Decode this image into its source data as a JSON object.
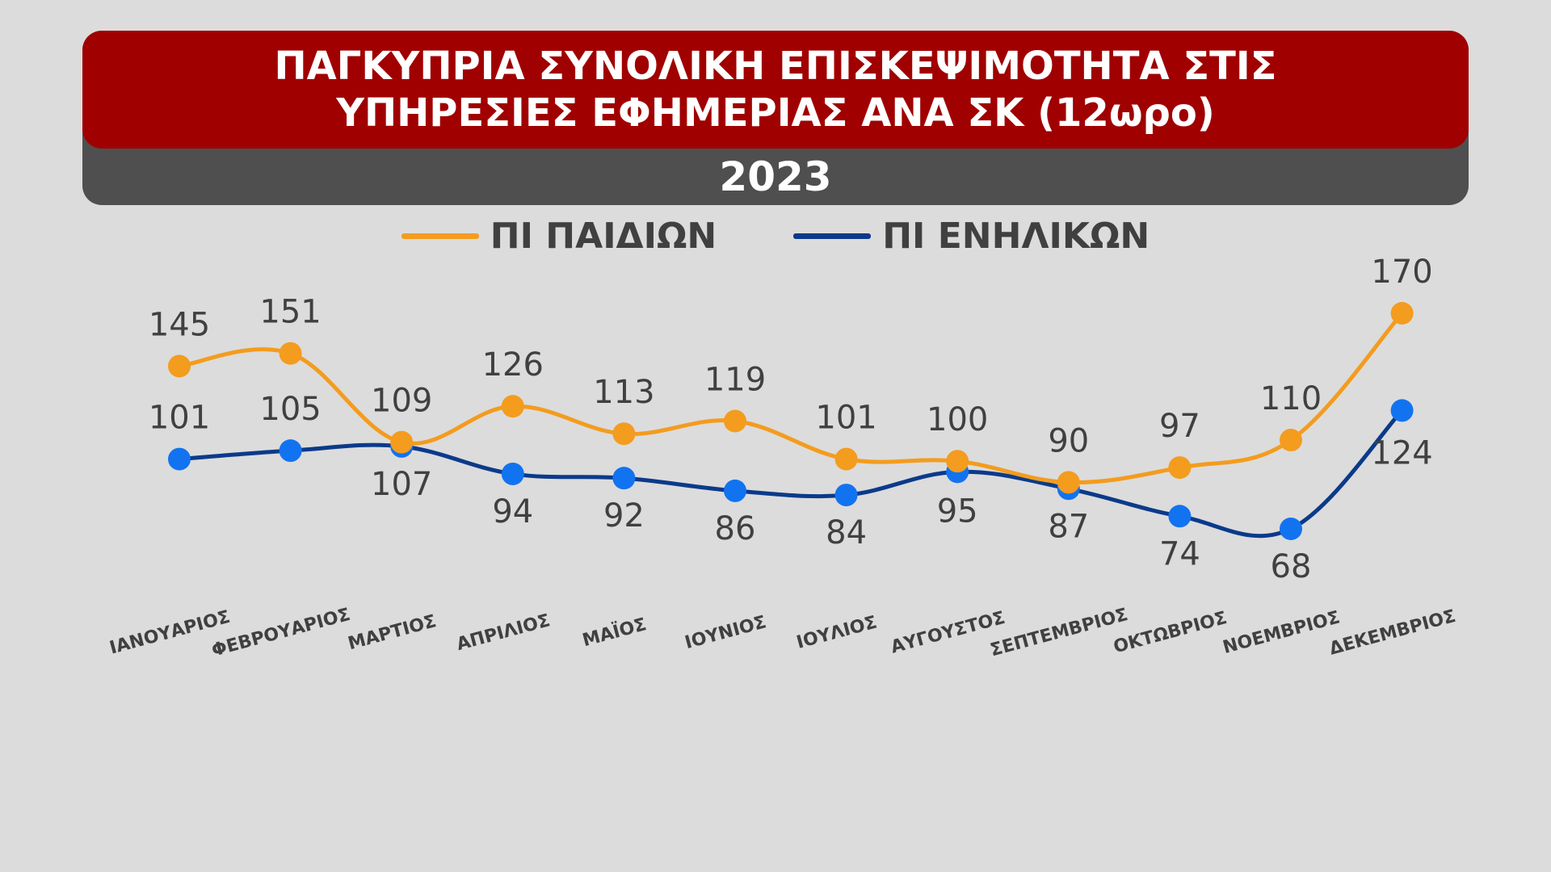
{
  "title": "ΠΑΓΚΥΠΡΙΑ ΣΥΝΟΛΙΚΗ ΕΠΙΣΚΕΨΙΜΟΤΗΤΑ ΣΤΙΣ ΥΠΗΡΕΣΙΕΣ ΕΦΗΜΕΡΙΑΣ ΑΝΑ ΣΚ (12ωρο)",
  "subtitle": "2023",
  "colors": {
    "title_bg": "#a00000",
    "subtitle_bg": "#4f4f4f",
    "paidion_line": "#f39c1e",
    "enilikon_line": "#0b3a8a",
    "enilikon_marker": "#1273f0"
  },
  "chart_data": {
    "type": "line",
    "title": "ΠΑΓΚΥΠΡΙΑ ΣΥΝΟΛΙΚΗ ΕΠΙΣΚΕΨΙΜΟΤΗΤΑ ΣΤΙΣ ΥΠΗΡΕΣΙΕΣ ΕΦΗΜΕΡΙΑΣ ΑΝΑ ΣΚ (12ωρο)",
    "subtitle": "2023",
    "categories": [
      "ΙΑΝΟΥΑΡΙΟΣ",
      "ΦΕΒΡΟΥΑΡΙΟΣ",
      "ΜΑΡΤΙΟΣ",
      "ΑΠΡΙΛΙΟΣ",
      "ΜΑΪΟΣ",
      "ΙΟΥΝΙΟΣ",
      "ΙΟΥΛΙΟΣ",
      "ΑΥΓΟΥΣΤΟΣ",
      "ΣΕΠΤΕΜΒΡΙΟΣ",
      "ΟΚΤΩΒΡΙΟΣ",
      "ΝΟΕΜΒΡΙΟΣ",
      "ΔΕΚΕΜΒΡΙΟΣ"
    ],
    "series": [
      {
        "name": "ΠΙ ΠΑΙΔΙΩΝ",
        "values": [
          145,
          151,
          109,
          126,
          113,
          119,
          101,
          100,
          90,
          97,
          110,
          170
        ]
      },
      {
        "name": "ΠΙ ΕΝΗΛΙΚΩΝ",
        "values": [
          101,
          105,
          107,
          94,
          92,
          86,
          84,
          95,
          87,
          74,
          68,
          124
        ]
      }
    ],
    "ylim": [
      60,
      180
    ],
    "grid": false,
    "legend": "top-center",
    "smooth": true,
    "data_labels": true
  }
}
